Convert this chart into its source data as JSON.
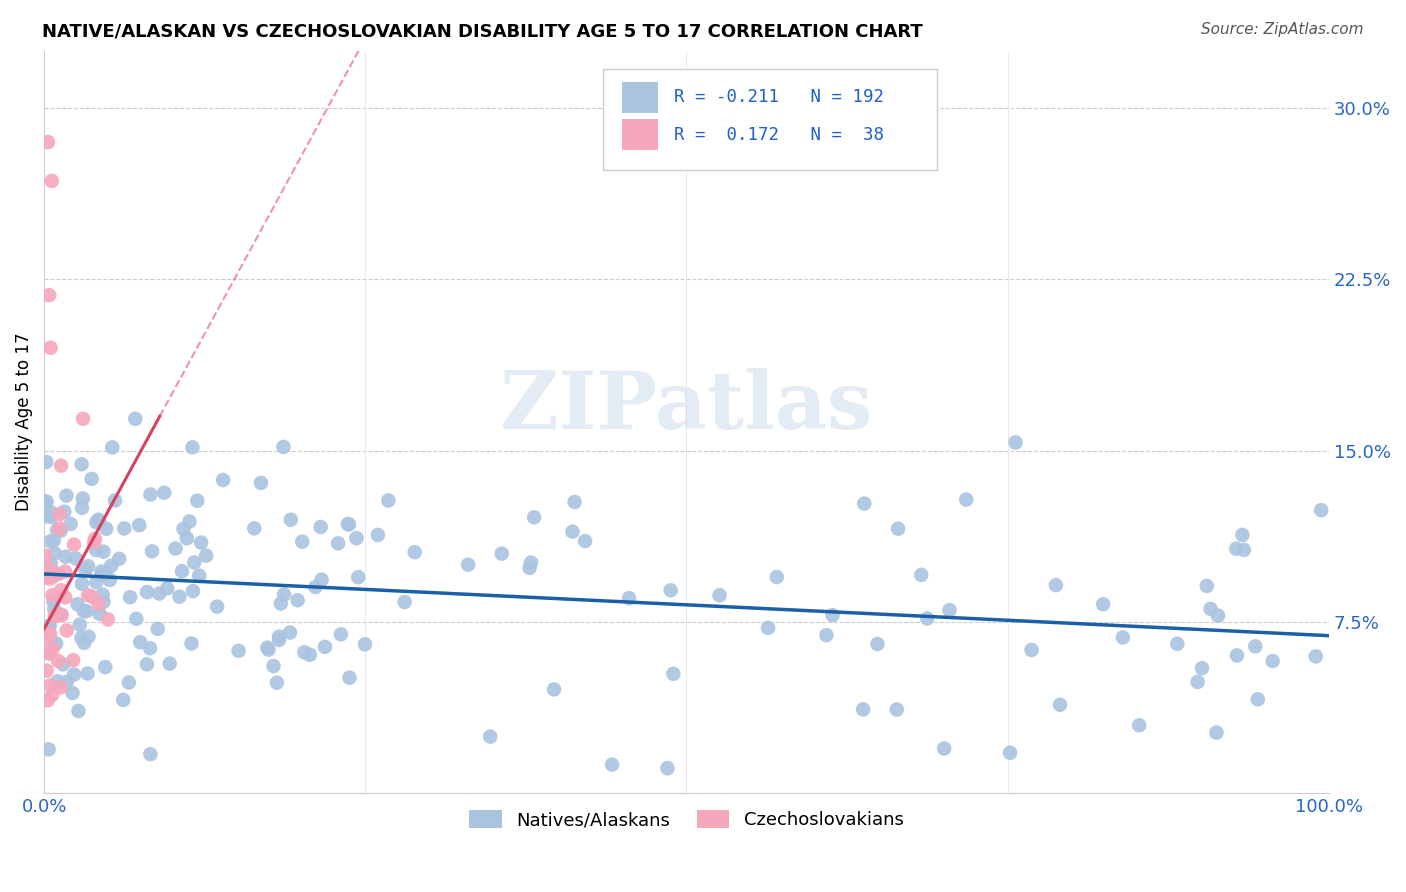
{
  "title": "NATIVE/ALASKAN VS CZECHOSLOVAKIAN DISABILITY AGE 5 TO 17 CORRELATION CHART",
  "source": "Source: ZipAtlas.com",
  "ylabel": "Disability Age 5 to 17",
  "xlim": [
    0,
    1.0
  ],
  "ylim": [
    0,
    0.325
  ],
  "yticks": [
    0.075,
    0.15,
    0.225,
    0.3
  ],
  "ytick_labels": [
    "7.5%",
    "15.0%",
    "22.5%",
    "30.0%"
  ],
  "legend_blue_label": "Natives/Alaskans",
  "legend_pink_label": "Czechoslovakians",
  "r_blue": -0.211,
  "n_blue": 192,
  "r_pink": 0.172,
  "n_pink": 38,
  "blue_color": "#aac4e0",
  "pink_color": "#f5a8bb",
  "blue_line_color": "#1a5fa8",
  "pink_line_color": "#d94060",
  "watermark": "ZIPatlas",
  "blue_trend_y_start": 0.096,
  "blue_trend_y_end": 0.069,
  "pink_trend_y_start": 0.072,
  "pink_trend_y_end": 0.165
}
